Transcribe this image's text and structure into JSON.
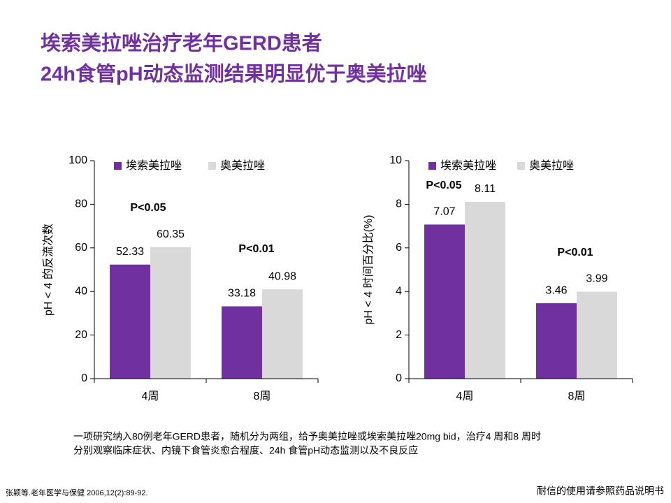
{
  "title_lines": [
    "埃索美拉唑治疗老年GERD患者",
    "24h食管pH动态监测结果明显优于奥美拉唑"
  ],
  "chart_data": [
    {
      "type": "bar",
      "y_label": "pH < 4 的反流次数",
      "categories": [
        "4周",
        "8周"
      ],
      "series": [
        {
          "name": "埃索美拉唑",
          "color": "#7030a0",
          "values": [
            52.33,
            33.18
          ]
        },
        {
          "name": "奥美拉唑",
          "color": "#d9d9d9",
          "values": [
            60.35,
            40.98
          ]
        }
      ],
      "annotations": [
        "P<0.05",
        "P<0.01"
      ],
      "ylim": [
        0,
        100
      ],
      "yticks": [
        0,
        20,
        40,
        60,
        80,
        100
      ]
    },
    {
      "type": "bar",
      "y_label": "pH < 4 时间百分比(%)",
      "categories": [
        "4周",
        "8周"
      ],
      "series": [
        {
          "name": "埃索美拉唑",
          "color": "#7030a0",
          "values": [
            7.07,
            3.46
          ]
        },
        {
          "name": "奥美拉唑",
          "color": "#d9d9d9",
          "values": [
            8.11,
            3.99
          ]
        }
      ],
      "annotations": [
        "P<0.05",
        "P<0.01"
      ],
      "ylim": [
        0,
        10
      ],
      "yticks": [
        0,
        2,
        4,
        6,
        8,
        10
      ]
    }
  ],
  "note_lines": [
    "一项研究纳入80例老年GERD患者，随机分为两组，给予奥美拉唑或埃索美拉唑20mg bid，治疗4 周和8 周时",
    "分别观察临床症状、内镜下食管炎愈合程度、24h 食管pH动态监测以及不良反应"
  ],
  "citation": "张颖等.老年医学与保健  2006,12(2):89-92.",
  "footer": "耐信的使用请参照药品说明书"
}
